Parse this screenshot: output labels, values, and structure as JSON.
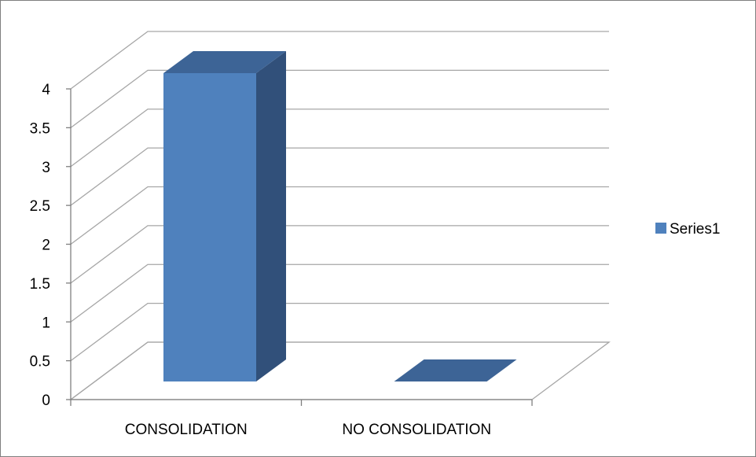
{
  "chart_data": {
    "type": "bar",
    "categories": [
      "CONSOLIDATION",
      "NO CONSOLIDATION"
    ],
    "series": [
      {
        "name": "Series1",
        "values": [
          4,
          0
        ]
      }
    ],
    "y_ticks": [
      "0",
      "0.5",
      "1",
      "1.5",
      "2",
      "2.5",
      "3",
      "3.5",
      "4"
    ],
    "ylim": [
      0,
      4
    ],
    "grid": true,
    "legend_position": "right",
    "colors": {
      "bar_front": "#4F81BD",
      "bar_side": "#31507A",
      "bar_top": "#3D6496",
      "grid": "#A6A6A6",
      "frame": "#7F7F7F"
    }
  }
}
